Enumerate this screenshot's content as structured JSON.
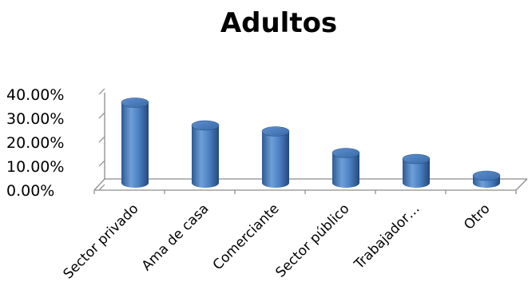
{
  "chart_data": {
    "type": "bar",
    "title": "Adultos",
    "categories": [
      "Sector privado",
      "Ama de casa",
      "Comerciante",
      "Sector público",
      "Trabajador…",
      "Otro"
    ],
    "values": [
      33.5,
      24.0,
      21.5,
      12.5,
      10.0,
      3.0
    ],
    "ylim": [
      0,
      40
    ],
    "yticks": [
      "40.00%",
      "30.00%",
      "20.00%",
      "10.00%",
      "0.00%"
    ],
    "xlabel": "",
    "ylabel": "",
    "grid": false,
    "legend": "none",
    "bar_color": "#4f81bd",
    "bar_shape": "cylinder-3d"
  }
}
